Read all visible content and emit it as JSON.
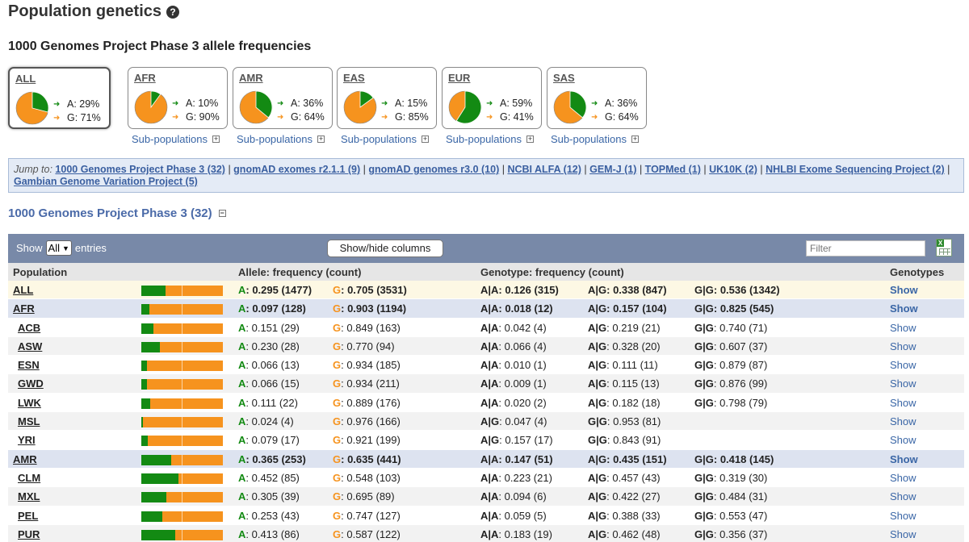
{
  "page_title": "Population genetics",
  "subtitle": "1000 Genomes Project Phase 3 allele frequencies",
  "populations": [
    {
      "name": "ALL",
      "a": "A: 29%",
      "g": "G: 71%",
      "a_frac": 0.29,
      "selected": true
    },
    {
      "name": "AFR",
      "a": "A: 10%",
      "g": "G: 90%",
      "a_frac": 0.1
    },
    {
      "name": "AMR",
      "a": "A: 36%",
      "g": "G: 64%",
      "a_frac": 0.36
    },
    {
      "name": "EAS",
      "a": "A: 15%",
      "g": "G: 85%",
      "a_frac": 0.15
    },
    {
      "name": "EUR",
      "a": "A: 59%",
      "g": "G: 41%",
      "a_frac": 0.59
    },
    {
      "name": "SAS",
      "a": "A: 36%",
      "g": "G: 64%",
      "a_frac": 0.36
    }
  ],
  "subpop_label": "Sub-populations",
  "jump": {
    "label": "Jump to:",
    "links": [
      "1000 Genomes Project Phase 3 (32)",
      "gnomAD exomes r2.1.1 (9)",
      "gnomAD genomes r3.0 (10)",
      "NCBI ALFA (12)",
      "GEM-J (1)",
      "TOPMed (1)",
      "UK10K (2)",
      "NHLBI Exome Sequencing Project (2)",
      "Gambian Genome Variation Project (5)"
    ]
  },
  "section_title": "1000 Genomes Project Phase 3 (32)",
  "toolbar": {
    "show_label": "Show",
    "entries_value": "All",
    "entries_label": "entries",
    "columns_button": "Show/hide columns",
    "filter_placeholder": "Filter"
  },
  "colors": {
    "allele_a": "#138a13",
    "allele_g": "#f6931e",
    "toolbar": "#7889a8"
  },
  "columns": {
    "population": "Population",
    "allele": "Allele: frequency (count)",
    "genotype": "Genotype: frequency (count)",
    "genotypes": "Genotypes"
  },
  "rows": [
    {
      "pop": "ALL",
      "kind": "all",
      "a_frac": 0.295,
      "a_val": ": 0.295 (1477)",
      "g_val": ": 0.705 (3531)",
      "gt": [
        {
          "l": "A|A",
          "v": ": 0.126 (315)"
        },
        {
          "l": "A|G",
          "v": ": 0.338 (847)"
        },
        {
          "l": "G|G",
          "v": ": 0.536 (1342)"
        }
      ],
      "show": "Show"
    },
    {
      "pop": "AFR",
      "kind": "super",
      "a_frac": 0.097,
      "a_val": ": 0.097 (128)",
      "g_val": ": 0.903 (1194)",
      "gt": [
        {
          "l": "A|A",
          "v": ": 0.018 (12)"
        },
        {
          "l": "A|G",
          "v": ": 0.157 (104)"
        },
        {
          "l": "G|G",
          "v": ": 0.825 (545)"
        }
      ],
      "show": "Show"
    },
    {
      "pop": "ACB",
      "kind": "sub",
      "a_frac": 0.151,
      "a_val": ": 0.151 (29)",
      "g_val": ": 0.849 (163)",
      "gt": [
        {
          "l": "A|A",
          "v": ": 0.042 (4)"
        },
        {
          "l": "A|G",
          "v": ": 0.219 (21)"
        },
        {
          "l": "G|G",
          "v": ": 0.740 (71)"
        }
      ],
      "show": "Show"
    },
    {
      "pop": "ASW",
      "kind": "sub",
      "a_frac": 0.23,
      "a_val": ": 0.230 (28)",
      "g_val": ": 0.770 (94)",
      "gt": [
        {
          "l": "A|A",
          "v": ": 0.066 (4)"
        },
        {
          "l": "A|G",
          "v": ": 0.328 (20)"
        },
        {
          "l": "G|G",
          "v": ": 0.607 (37)"
        }
      ],
      "show": "Show"
    },
    {
      "pop": "ESN",
      "kind": "sub",
      "a_frac": 0.066,
      "a_val": ": 0.066 (13)",
      "g_val": ": 0.934 (185)",
      "gt": [
        {
          "l": "A|A",
          "v": ": 0.010 (1)"
        },
        {
          "l": "A|G",
          "v": ": 0.111 (11)"
        },
        {
          "l": "G|G",
          "v": ": 0.879 (87)"
        }
      ],
      "show": "Show"
    },
    {
      "pop": "GWD",
      "kind": "sub",
      "a_frac": 0.066,
      "a_val": ": 0.066 (15)",
      "g_val": ": 0.934 (211)",
      "gt": [
        {
          "l": "A|A",
          "v": ": 0.009 (1)"
        },
        {
          "l": "A|G",
          "v": ": 0.115 (13)"
        },
        {
          "l": "G|G",
          "v": ": 0.876 (99)"
        }
      ],
      "show": "Show"
    },
    {
      "pop": "LWK",
      "kind": "sub",
      "a_frac": 0.111,
      "a_val": ": 0.111 (22)",
      "g_val": ": 0.889 (176)",
      "gt": [
        {
          "l": "A|A",
          "v": ": 0.020 (2)"
        },
        {
          "l": "A|G",
          "v": ": 0.182 (18)"
        },
        {
          "l": "G|G",
          "v": ": 0.798 (79)"
        }
      ],
      "show": "Show"
    },
    {
      "pop": "MSL",
      "kind": "sub",
      "a_frac": 0.024,
      "a_val": ": 0.024 (4)",
      "g_val": ": 0.976 (166)",
      "gt": [
        {
          "l": "A|G",
          "v": ": 0.047 (4)"
        },
        {
          "l": "G|G",
          "v": ": 0.953 (81)"
        }
      ],
      "show": "Show"
    },
    {
      "pop": "YRI",
      "kind": "sub",
      "a_frac": 0.079,
      "a_val": ": 0.079 (17)",
      "g_val": ": 0.921 (199)",
      "gt": [
        {
          "l": "A|G",
          "v": ": 0.157 (17)"
        },
        {
          "l": "G|G",
          "v": ": 0.843 (91)"
        }
      ],
      "show": "Show"
    },
    {
      "pop": "AMR",
      "kind": "super",
      "a_frac": 0.365,
      "a_val": ": 0.365 (253)",
      "g_val": ": 0.635 (441)",
      "gt": [
        {
          "l": "A|A",
          "v": ": 0.147 (51)"
        },
        {
          "l": "A|G",
          "v": ": 0.435 (151)"
        },
        {
          "l": "G|G",
          "v": ": 0.418 (145)"
        }
      ],
      "show": "Show"
    },
    {
      "pop": "CLM",
      "kind": "sub",
      "a_frac": 0.452,
      "a_val": ": 0.452 (85)",
      "g_val": ": 0.548 (103)",
      "gt": [
        {
          "l": "A|A",
          "v": ": 0.223 (21)"
        },
        {
          "l": "A|G",
          "v": ": 0.457 (43)"
        },
        {
          "l": "G|G",
          "v": ": 0.319 (30)"
        }
      ],
      "show": "Show"
    },
    {
      "pop": "MXL",
      "kind": "sub",
      "a_frac": 0.305,
      "a_val": ": 0.305 (39)",
      "g_val": ": 0.695 (89)",
      "gt": [
        {
          "l": "A|A",
          "v": ": 0.094 (6)"
        },
        {
          "l": "A|G",
          "v": ": 0.422 (27)"
        },
        {
          "l": "G|G",
          "v": ": 0.484 (31)"
        }
      ],
      "show": "Show"
    },
    {
      "pop": "PEL",
      "kind": "sub",
      "a_frac": 0.253,
      "a_val": ": 0.253 (43)",
      "g_val": ": 0.747 (127)",
      "gt": [
        {
          "l": "A|A",
          "v": ": 0.059 (5)"
        },
        {
          "l": "A|G",
          "v": ": 0.388 (33)"
        },
        {
          "l": "G|G",
          "v": ": 0.553 (47)"
        }
      ],
      "show": "Show"
    },
    {
      "pop": "PUR",
      "kind": "sub",
      "a_frac": 0.413,
      "a_val": ": 0.413 (86)",
      "g_val": ": 0.587 (122)",
      "gt": [
        {
          "l": "A|A",
          "v": ": 0.183 (19)"
        },
        {
          "l": "A|G",
          "v": ": 0.462 (48)"
        },
        {
          "l": "G|G",
          "v": ": 0.356 (37)"
        }
      ],
      "show": "Show"
    }
  ]
}
